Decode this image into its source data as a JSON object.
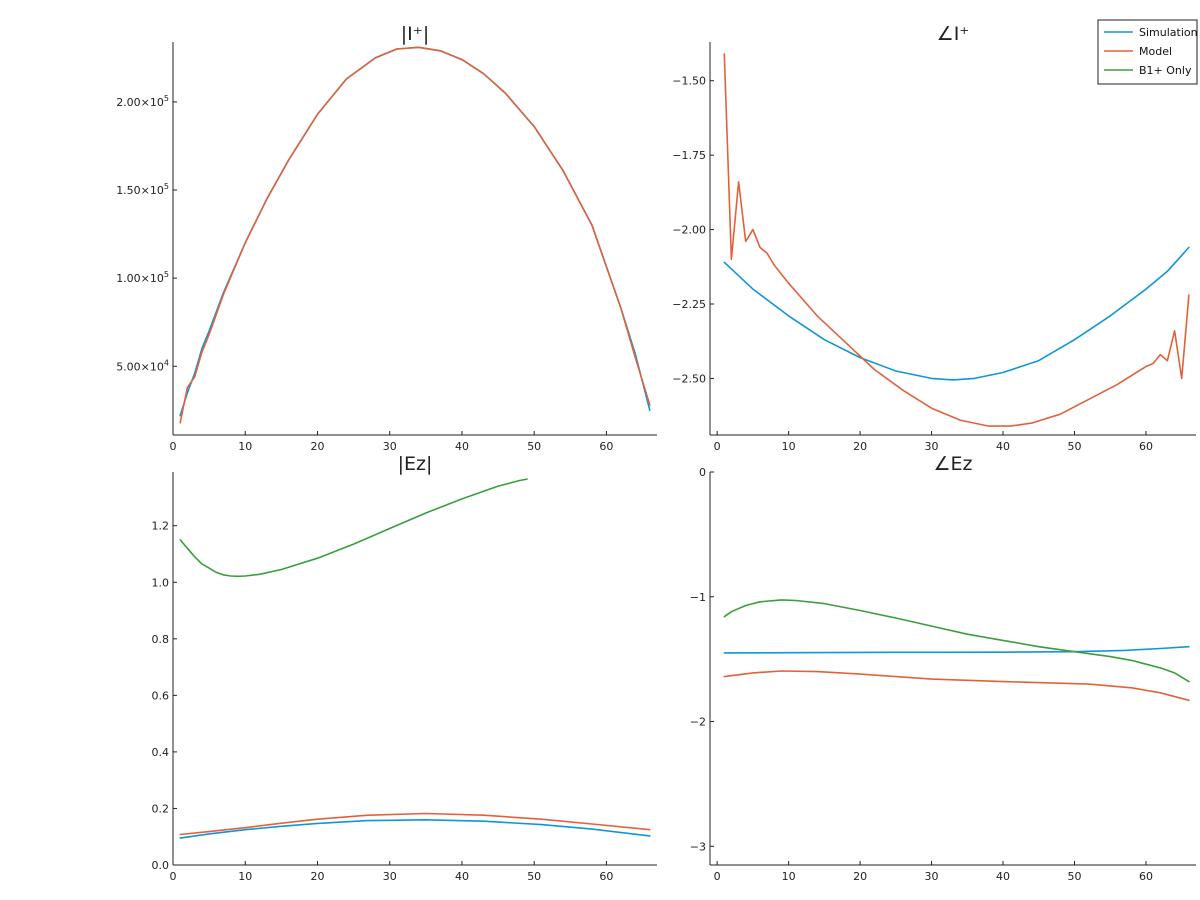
{
  "colors": {
    "simulation": "#0f96d9",
    "model": "#e0623d",
    "b1_only": "#3b9e3e",
    "axis": "#222222"
  },
  "legend": {
    "placement": "top-right",
    "entries": [
      {
        "label": "Simulation",
        "color_key": "simulation"
      },
      {
        "label": "Model",
        "color_key": "model"
      },
      {
        "label": "B1+ Only",
        "color_key": "b1_only"
      }
    ]
  },
  "chart_data": [
    {
      "id": "mag-i",
      "type": "line",
      "title": "|I⁺|",
      "xlim": [
        0,
        67
      ],
      "ylim": [
        11000,
        234000
      ],
      "grid": false,
      "xticks": [
        {
          "v": 0,
          "label": "0"
        },
        {
          "v": 10,
          "label": "10"
        },
        {
          "v": 20,
          "label": "20"
        },
        {
          "v": 30,
          "label": "30"
        },
        {
          "v": 40,
          "label": "40"
        },
        {
          "v": 50,
          "label": "50"
        },
        {
          "v": 60,
          "label": "60"
        }
      ],
      "yticks": [
        {
          "v": 50000,
          "base": "5.00×10",
          "exp": "4"
        },
        {
          "v": 100000,
          "base": "1.00×10",
          "exp": "5"
        },
        {
          "v": 150000,
          "base": "1.50×10",
          "exp": "5"
        },
        {
          "v": 200000,
          "base": "2.00×10",
          "exp": "5"
        }
      ],
      "series": [
        {
          "name": "Simulation",
          "color_key": "simulation",
          "points": [
            [
              1,
              22000
            ],
            [
              2,
              35000
            ],
            [
              3,
              46000
            ],
            [
              4,
              60000
            ],
            [
              5,
              70000
            ],
            [
              7,
              92000
            ],
            [
              10,
              120000
            ],
            [
              13,
              145000
            ],
            [
              16,
              167000
            ],
            [
              20,
              193000
            ],
            [
              24,
              213000
            ],
            [
              28,
              225000
            ],
            [
              31,
              230000
            ],
            [
              34,
              231000
            ],
            [
              37,
              229000
            ],
            [
              40,
              224000
            ],
            [
              43,
              216000
            ],
            [
              46,
              205000
            ],
            [
              50,
              186000
            ],
            [
              54,
              161000
            ],
            [
              58,
              130000
            ],
            [
              62,
              83000
            ],
            [
              64,
              57000
            ],
            [
              66,
              25000
            ]
          ]
        },
        {
          "name": "Model",
          "color_key": "model",
          "points": [
            [
              1,
              18000
            ],
            [
              2,
              38000
            ],
            [
              3,
              44000
            ],
            [
              4,
              58000
            ],
            [
              5,
              68000
            ],
            [
              7,
              91000
            ],
            [
              10,
              120000
            ],
            [
              13,
              145000
            ],
            [
              16,
              167000
            ],
            [
              20,
              193000
            ],
            [
              24,
              213000
            ],
            [
              28,
              225000
            ],
            [
              31,
              230000
            ],
            [
              34,
              231000
            ],
            [
              37,
              229000
            ],
            [
              40,
              224000
            ],
            [
              43,
              216000
            ],
            [
              46,
              205000
            ],
            [
              50,
              186000
            ],
            [
              54,
              161000
            ],
            [
              58,
              130000
            ],
            [
              62,
              83000
            ],
            [
              64,
              55000
            ],
            [
              66,
              28000
            ]
          ]
        }
      ]
    },
    {
      "id": "ang-i",
      "type": "line",
      "title": "∠I⁺",
      "xlim": [
        -1,
        67
      ],
      "ylim": [
        -2.69,
        -1.37
      ],
      "grid": false,
      "xticks": [
        {
          "v": 0,
          "label": "0"
        },
        {
          "v": 10,
          "label": "10"
        },
        {
          "v": 20,
          "label": "20"
        },
        {
          "v": 30,
          "label": "30"
        },
        {
          "v": 40,
          "label": "40"
        },
        {
          "v": 50,
          "label": "50"
        },
        {
          "v": 60,
          "label": "60"
        }
      ],
      "yticks": [
        {
          "v": -1.5,
          "label": "−1.50"
        },
        {
          "v": -1.75,
          "label": "−1.75"
        },
        {
          "v": -2.0,
          "label": "−2.00"
        },
        {
          "v": -2.25,
          "label": "−2.25"
        },
        {
          "v": -2.5,
          "label": "−2.50"
        }
      ],
      "series": [
        {
          "name": "Simulation",
          "color_key": "simulation",
          "points": [
            [
              1,
              -2.11
            ],
            [
              5,
              -2.2
            ],
            [
              10,
              -2.29
            ],
            [
              15,
              -2.37
            ],
            [
              20,
              -2.43
            ],
            [
              25,
              -2.475
            ],
            [
              30,
              -2.5
            ],
            [
              33,
              -2.505
            ],
            [
              36,
              -2.5
            ],
            [
              40,
              -2.48
            ],
            [
              45,
              -2.44
            ],
            [
              50,
              -2.37
            ],
            [
              55,
              -2.29
            ],
            [
              60,
              -2.2
            ],
            [
              63,
              -2.14
            ],
            [
              66,
              -2.06
            ]
          ]
        },
        {
          "name": "Model",
          "color_key": "model",
          "points": [
            [
              1,
              -1.41
            ],
            [
              2,
              -2.1
            ],
            [
              3,
              -1.84
            ],
            [
              4,
              -2.04
            ],
            [
              5,
              -2.0
            ],
            [
              6,
              -2.06
            ],
            [
              7,
              -2.08
            ],
            [
              8,
              -2.12
            ],
            [
              10,
              -2.18
            ],
            [
              14,
              -2.29
            ],
            [
              18,
              -2.38
            ],
            [
              22,
              -2.47
            ],
            [
              26,
              -2.54
            ],
            [
              30,
              -2.6
            ],
            [
              34,
              -2.64
            ],
            [
              38,
              -2.66
            ],
            [
              41,
              -2.66
            ],
            [
              44,
              -2.65
            ],
            [
              48,
              -2.62
            ],
            [
              52,
              -2.57
            ],
            [
              56,
              -2.52
            ],
            [
              60,
              -2.46
            ],
            [
              61,
              -2.45
            ],
            [
              62,
              -2.42
            ],
            [
              63,
              -2.44
            ],
            [
              64,
              -2.34
            ],
            [
              65,
              -2.5
            ],
            [
              66,
              -2.22
            ]
          ]
        }
      ]
    },
    {
      "id": "mag-ez",
      "type": "line",
      "title": "|Ez|",
      "xlim": [
        0,
        67
      ],
      "ylim": [
        0,
        1.39
      ],
      "grid": false,
      "xticks": [
        {
          "v": 0,
          "label": "0"
        },
        {
          "v": 10,
          "label": "10"
        },
        {
          "v": 20,
          "label": "20"
        },
        {
          "v": 30,
          "label": "30"
        },
        {
          "v": 40,
          "label": "40"
        },
        {
          "v": 50,
          "label": "50"
        },
        {
          "v": 60,
          "label": "60"
        }
      ],
      "yticks": [
        {
          "v": 0,
          "label": "0.0"
        },
        {
          "v": 0.2,
          "label": "0.2"
        },
        {
          "v": 0.4,
          "label": "0.4"
        },
        {
          "v": 0.6,
          "label": "0.6"
        },
        {
          "v": 0.8,
          "label": "0.8"
        },
        {
          "v": 1.0,
          "label": "1.0"
        },
        {
          "v": 1.2,
          "label": "1.2"
        }
      ],
      "series": [
        {
          "name": "Simulation",
          "color_key": "simulation",
          "points": [
            [
              1,
              0.095
            ],
            [
              5,
              0.11
            ],
            [
              10,
              0.125
            ],
            [
              15,
              0.137
            ],
            [
              20,
              0.147
            ],
            [
              27,
              0.157
            ],
            [
              35,
              0.16
            ],
            [
              43,
              0.155
            ],
            [
              51,
              0.143
            ],
            [
              58,
              0.127
            ],
            [
              66,
              0.103
            ]
          ]
        },
        {
          "name": "Model",
          "color_key": "model",
          "points": [
            [
              1,
              0.108
            ],
            [
              5,
              0.118
            ],
            [
              10,
              0.132
            ],
            [
              15,
              0.148
            ],
            [
              20,
              0.162
            ],
            [
              27,
              0.176
            ],
            [
              35,
              0.182
            ],
            [
              43,
              0.176
            ],
            [
              51,
              0.162
            ],
            [
              58,
              0.145
            ],
            [
              66,
              0.125
            ]
          ]
        },
        {
          "name": "B1+ Only",
          "color_key": "b1_only",
          "points": [
            [
              1,
              1.15
            ],
            [
              2,
              1.12
            ],
            [
              3,
              1.09
            ],
            [
              4,
              1.065
            ],
            [
              5,
              1.05
            ],
            [
              6,
              1.035
            ],
            [
              7,
              1.026
            ],
            [
              8,
              1.022
            ],
            [
              9,
              1.021
            ],
            [
              10,
              1.022
            ],
            [
              12,
              1.028
            ],
            [
              15,
              1.045
            ],
            [
              20,
              1.085
            ],
            [
              25,
              1.135
            ],
            [
              30,
              1.19
            ],
            [
              35,
              1.245
            ],
            [
              40,
              1.295
            ],
            [
              45,
              1.34
            ],
            [
              48,
              1.36
            ],
            [
              49,
              1.365
            ]
          ]
        }
      ]
    },
    {
      "id": "ang-ez",
      "type": "line",
      "title": "∠Ez",
      "xlim": [
        -1,
        67
      ],
      "ylim": [
        -3.15,
        0
      ],
      "grid": false,
      "xticks": [
        {
          "v": 0,
          "label": "0"
        },
        {
          "v": 10,
          "label": "10"
        },
        {
          "v": 20,
          "label": "20"
        },
        {
          "v": 30,
          "label": "30"
        },
        {
          "v": 40,
          "label": "40"
        },
        {
          "v": 50,
          "label": "50"
        },
        {
          "v": 60,
          "label": "60"
        }
      ],
      "yticks": [
        {
          "v": 0,
          "label": "0"
        },
        {
          "v": -1,
          "label": "−1"
        },
        {
          "v": -2,
          "label": "−2"
        },
        {
          "v": -3,
          "label": "−3"
        }
      ],
      "series": [
        {
          "name": "Simulation",
          "color_key": "simulation",
          "points": [
            [
              1,
              -1.45
            ],
            [
              10,
              -1.448
            ],
            [
              20,
              -1.446
            ],
            [
              30,
              -1.445
            ],
            [
              40,
              -1.444
            ],
            [
              50,
              -1.44
            ],
            [
              57,
              -1.43
            ],
            [
              62,
              -1.415
            ],
            [
              66,
              -1.4
            ]
          ]
        },
        {
          "name": "Model",
          "color_key": "model",
          "points": [
            [
              1,
              -1.64
            ],
            [
              5,
              -1.61
            ],
            [
              9,
              -1.595
            ],
            [
              14,
              -1.6
            ],
            [
              20,
              -1.62
            ],
            [
              25,
              -1.64
            ],
            [
              30,
              -1.66
            ],
            [
              40,
              -1.68
            ],
            [
              52,
              -1.7
            ],
            [
              58,
              -1.73
            ],
            [
              62,
              -1.77
            ],
            [
              66,
              -1.83
            ]
          ]
        },
        {
          "name": "B1+ Only",
          "color_key": "b1_only",
          "points": [
            [
              1,
              -1.16
            ],
            [
              2,
              -1.12
            ],
            [
              4,
              -1.07
            ],
            [
              6,
              -1.04
            ],
            [
              9,
              -1.025
            ],
            [
              11,
              -1.03
            ],
            [
              15,
              -1.055
            ],
            [
              20,
              -1.11
            ],
            [
              25,
              -1.17
            ],
            [
              30,
              -1.235
            ],
            [
              35,
              -1.3
            ],
            [
              40,
              -1.35
            ],
            [
              45,
              -1.4
            ],
            [
              50,
              -1.44
            ],
            [
              55,
              -1.48
            ],
            [
              58,
              -1.51
            ],
            [
              62,
              -1.57
            ],
            [
              64,
              -1.61
            ],
            [
              66,
              -1.68
            ]
          ]
        }
      ]
    }
  ]
}
